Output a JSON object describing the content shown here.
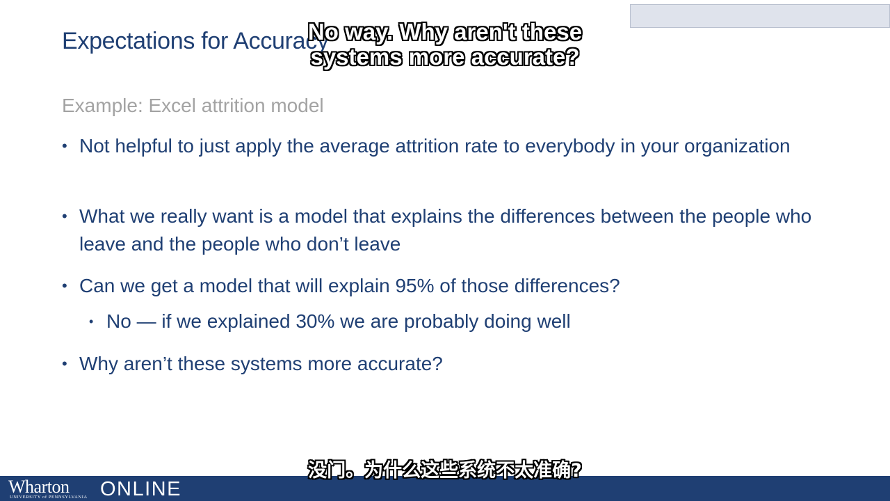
{
  "slide": {
    "title": "Expectations for Accuracy",
    "subtitle": "Example: Excel attrition model",
    "bullets": [
      "Not helpful to just apply the average attrition rate to everybody in your organization",
      "What we really want is a model that explains the differences between the people who leave and the people who don’t leave",
      "Can we get a model that will explain 95% of those differences?",
      "Why aren’t these systems more accurate?"
    ],
    "sub_bullets": [
      "No — if we explained 30% we are probably doing well"
    ],
    "bullet_glyph": "•"
  },
  "footer": {
    "logo_name": "Wharton",
    "logo_university": "UNIVERSITY of PENNSYLVANIA",
    "logo_online": "ONLINE"
  },
  "captions": {
    "english_line1": "No way. Why aren't these",
    "english_line2": "systems more accurate?",
    "chinese": "没门。为什么这些系统不太准确?"
  },
  "colors": {
    "title_text": "#1f3f73",
    "subtitle_text": "#a3a3a3",
    "footer_bar": "#1f3f73"
  }
}
